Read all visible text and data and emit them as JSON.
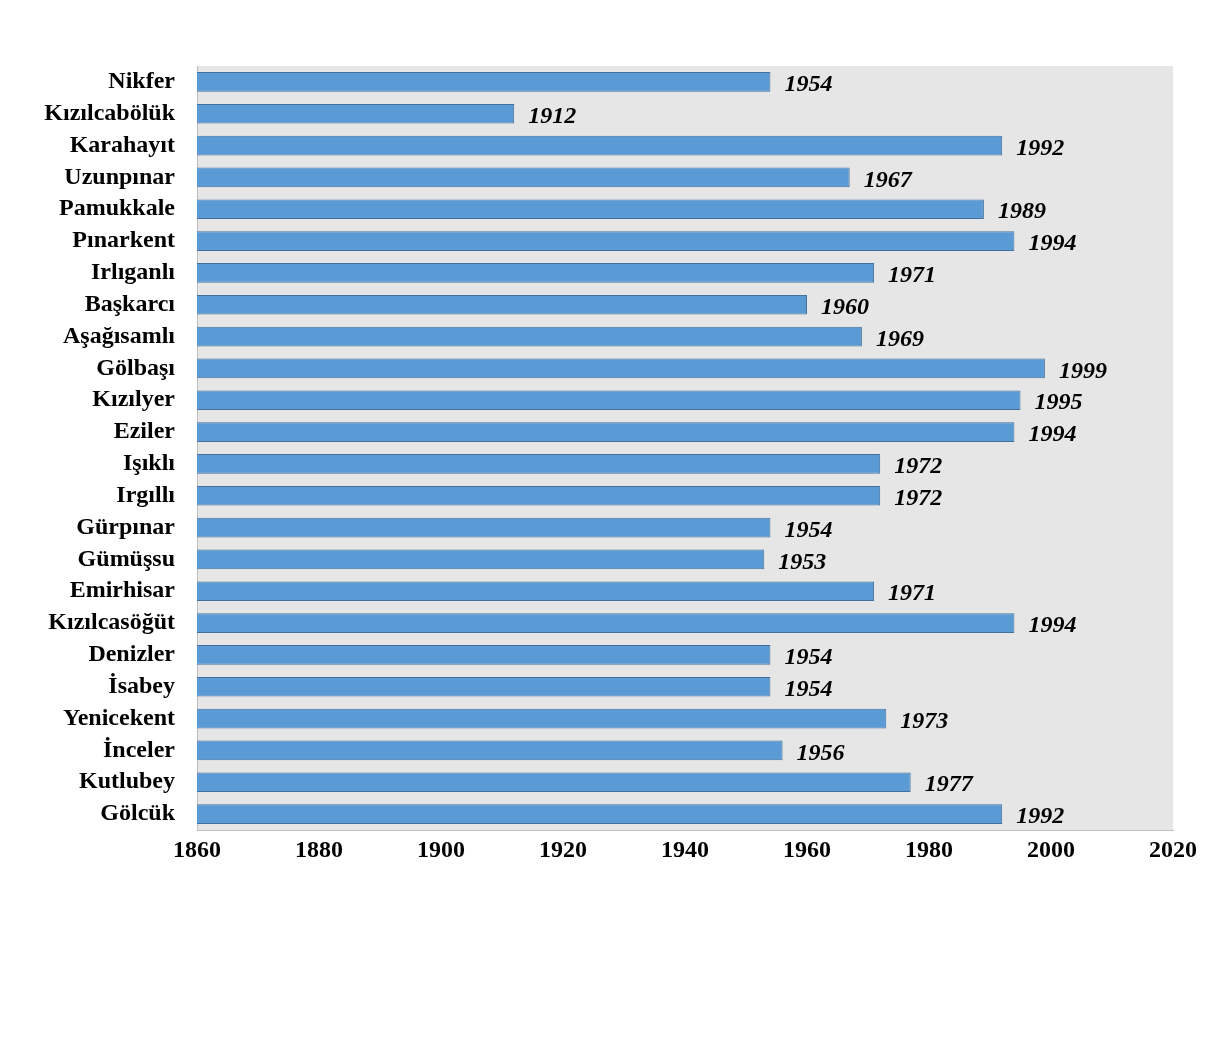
{
  "chart_data": {
    "type": "bar",
    "orientation": "horizontal",
    "categories": [
      "Nikfer",
      "Kızılcabölük",
      "Karahayıt",
      "Uzunpınar",
      "Pamukkale",
      "Pınarkent",
      "Irlıganlı",
      "Başkarcı",
      "Aşağısamlı",
      "Gölbaşı",
      "Kızılyer",
      "Eziler",
      "Işıklı",
      "Irgıllı",
      "Gürpınar",
      "Gümüşsu",
      "Emirhisar",
      "Kızılcasöğüt",
      "Denizler",
      "İsabey",
      "Yenicekent",
      "İnceler",
      "Kutlubey",
      "Gölcük"
    ],
    "values": [
      1954,
      1912,
      1992,
      1967,
      1989,
      1994,
      1971,
      1960,
      1969,
      1999,
      1995,
      1994,
      1972,
      1972,
      1954,
      1953,
      1971,
      1994,
      1954,
      1954,
      1973,
      1956,
      1977,
      1992
    ],
    "color": "#5b9bd5",
    "xlim": [
      1860,
      2020
    ],
    "xticks": [
      1860,
      1880,
      1900,
      1920,
      1940,
      1960,
      1980,
      2000,
      2020
    ],
    "data_labels": true
  }
}
